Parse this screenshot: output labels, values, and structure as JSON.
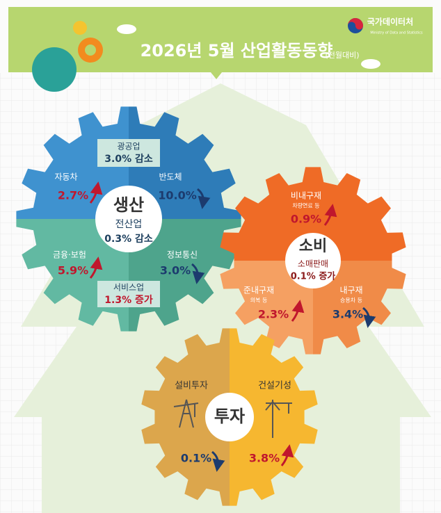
{
  "header": {
    "title": "2026년  5월 산업활동동향",
    "subtitle": "(전월대비)",
    "logo_name": "국가데이터처",
    "logo_sub": "Ministry of Data and Statistics"
  },
  "production": {
    "label": "생산",
    "total_label": "전산업",
    "total_value": "0.3% 감소",
    "items": [
      {
        "name": "광공업",
        "value": "3.0% 감소"
      },
      {
        "name": "자동차",
        "value": "2.7%"
      },
      {
        "name": "반도체",
        "value": "10.0%"
      },
      {
        "name": "금융·보험",
        "value": "5.9%"
      },
      {
        "name": "정보통신",
        "value": "3.0%"
      },
      {
        "name": "서비스업",
        "value": "1.3% 증가"
      }
    ]
  },
  "consumption": {
    "label": "소비",
    "total_label": "소매판매",
    "total_value": "0.1% 증가",
    "items": [
      {
        "name": "비내구재",
        "note": "차량연료 등",
        "value": "0.9%"
      },
      {
        "name": "준내구재",
        "note": "의복 등",
        "value": "2.3%"
      },
      {
        "name": "내구재",
        "note": "승용차 등",
        "value": "3.4%"
      }
    ]
  },
  "investment": {
    "label": "투자",
    "items": [
      {
        "name": "설비투자",
        "value": "0.1%"
      },
      {
        "name": "건설기성",
        "value": "3.8%"
      }
    ]
  }
}
